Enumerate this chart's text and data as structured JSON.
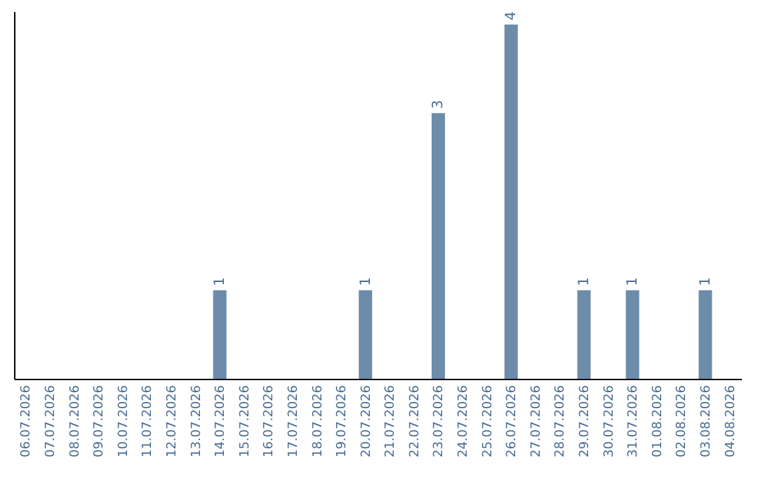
{
  "chart_data": {
    "type": "bar",
    "categories": [
      "06.07.2026",
      "07.07.2026",
      "08.07.2026",
      "09.07.2026",
      "10.07.2026",
      "11.07.2026",
      "12.07.2026",
      "13.07.2026",
      "14.07.2026",
      "15.07.2026",
      "16.07.2026",
      "17.07.2026",
      "18.07.2026",
      "19.07.2026",
      "20.07.2026",
      "21.07.2026",
      "22.07.2026",
      "23.07.2026",
      "24.07.2026",
      "25.07.2026",
      "26.07.2026",
      "27.07.2026",
      "28.07.2026",
      "29.07.2026",
      "30.07.2026",
      "31.07.2026",
      "01.08.2026",
      "02.08.2026",
      "03.08.2026",
      "04.08.2026"
    ],
    "values": [
      null,
      null,
      null,
      null,
      null,
      null,
      null,
      null,
      1,
      null,
      null,
      null,
      null,
      null,
      1,
      null,
      null,
      3,
      null,
      null,
      4,
      null,
      null,
      1,
      null,
      1,
      null,
      null,
      1,
      null
    ],
    "color": "#6d8caa",
    "ylim": [
      0,
      4.15
    ],
    "data_labels": true,
    "tick_labels": "x",
    "grid": false
  }
}
